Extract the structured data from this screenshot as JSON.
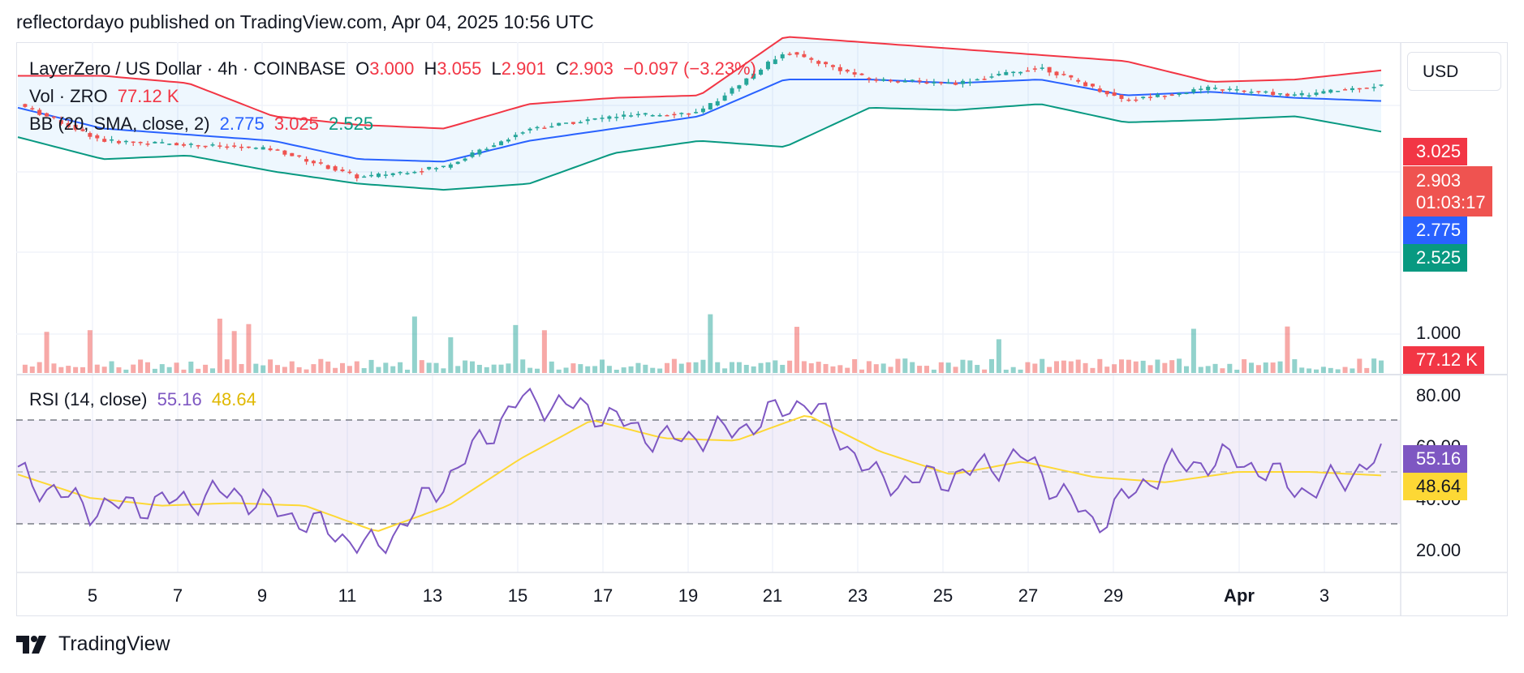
{
  "header": {
    "published": "reflectordayo published on TradingView.com, Apr 04, 2025 10:56 UTC"
  },
  "legend": {
    "symbol": "LayerZero / US Dollar · 4h · COINBASE",
    "o_label": "O",
    "o_value": "3.000",
    "h_label": "H",
    "h_value": "3.055",
    "l_label": "L",
    "l_value": "2.901",
    "c_label": "C",
    "c_value": "2.903",
    "change": "−0.097 (−3.23%)",
    "vol_label": "Vol · ZRO",
    "vol_value": "77.12 K",
    "bb_label": "BB (20, SMA, close, 2)",
    "bb_mid": "2.775",
    "bb_upper": "3.025",
    "bb_lower": "2.525",
    "rsi_label": "RSI (14, close)",
    "rsi_value": "55.16",
    "rsi_ma": "48.64"
  },
  "currency_button": "USD",
  "price_axis": {
    "tick_1000": "1.000",
    "tag_upper": "3.025",
    "tag_close": "2.903",
    "tag_countdown": "01:03:17",
    "tag_mid": "2.775",
    "tag_lower": "2.525",
    "tag_volume": "77.12 K"
  },
  "rsi_axis": {
    "tick_80": "80.00",
    "tick_60": "60.00",
    "tick_40": "40.00",
    "tick_20": "20.00",
    "tag_rsi": "55.16",
    "tag_ma": "48.64"
  },
  "time_axis": [
    "5",
    "7",
    "9",
    "11",
    "13",
    "15",
    "17",
    "19",
    "21",
    "23",
    "25",
    "27",
    "29",
    "Apr",
    "3"
  ],
  "brand": "TradingView",
  "colors": {
    "up": "#26a69a",
    "down": "#ef5350",
    "bb_upper": "#f23645",
    "bb_mid": "#2962ff",
    "bb_lower": "#089981",
    "rsi": "#7e57c2",
    "rsi_ma": "#fdd835",
    "band_fill": "#2196f3"
  },
  "chart_data": [
    {
      "type": "line",
      "title": "LayerZero / US Dollar · 4h · COINBASE",
      "x": [
        "Apr 4 (Mar)",
        "Mar 5",
        "Mar 7",
        "Mar 9",
        "Mar 11",
        "Mar 13",
        "Mar 15",
        "Mar 17",
        "Mar 19",
        "Mar 21",
        "Mar 23",
        "Mar 25",
        "Mar 27",
        "Mar 29",
        "Apr 1",
        "Apr 3",
        "Apr 4"
      ],
      "series": [
        {
          "name": "close",
          "values": [
            2.75,
            2.45,
            2.42,
            2.38,
            2.15,
            2.24,
            2.55,
            2.65,
            2.68,
            3.18,
            2.95,
            2.92,
            3.05,
            2.78,
            2.88,
            2.82,
            2.903
          ]
        },
        {
          "name": "BB upper",
          "values": [
            2.98,
            2.98,
            2.92,
            2.65,
            2.58,
            2.55,
            2.75,
            2.8,
            2.82,
            3.3,
            3.25,
            3.2,
            3.15,
            3.1,
            2.93,
            2.95,
            3.025
          ]
        },
        {
          "name": "BB basis",
          "values": [
            2.72,
            2.55,
            2.5,
            2.45,
            2.3,
            2.28,
            2.45,
            2.55,
            2.65,
            2.95,
            2.95,
            2.92,
            2.95,
            2.82,
            2.85,
            2.8,
            2.775
          ]
        },
        {
          "name": "BB lower",
          "values": [
            2.48,
            2.3,
            2.33,
            2.2,
            2.1,
            2.05,
            2.1,
            2.35,
            2.45,
            2.4,
            2.72,
            2.7,
            2.75,
            2.6,
            2.62,
            2.65,
            2.525
          ]
        }
      ],
      "ylim": [
        0.9,
        3.4
      ]
    },
    {
      "type": "line",
      "title": "RSI (14, close)",
      "series": [
        {
          "name": "RSI",
          "values": [
            49,
            36,
            38,
            42,
            31,
            20,
            48,
            78,
            74,
            62,
            66,
            78,
            46,
            48,
            56,
            30,
            52,
            55,
            42,
            55.16
          ]
        },
        {
          "name": "RSI MA",
          "values": [
            49,
            40,
            37,
            38,
            37,
            27,
            37,
            55,
            70,
            63,
            62,
            72,
            58,
            49,
            54,
            48,
            46,
            50,
            50,
            48.64
          ]
        }
      ],
      "ylim": [
        15,
        85
      ],
      "bands": [
        30,
        50,
        70
      ]
    }
  ]
}
